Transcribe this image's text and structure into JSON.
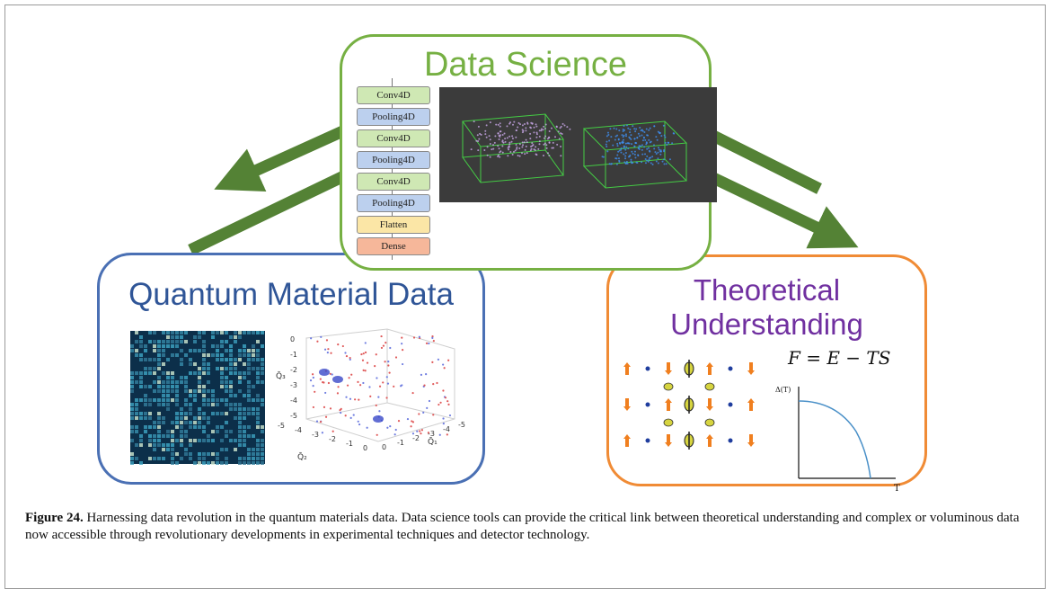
{
  "diagram": {
    "data_science": {
      "title": "Data Science",
      "layers": [
        "Conv4D",
        "Pooling4D",
        "Conv4D",
        "Pooling4D",
        "Conv4D",
        "Pooling4D",
        "Flatten",
        "Dense"
      ],
      "color": "#76b043"
    },
    "quantum_material": {
      "title": "Quantum Material Data",
      "color": "#4a70b4",
      "axis_z_ticks": [
        "0",
        "-1",
        "-2",
        "-3",
        "-4",
        "-5"
      ],
      "axis_x_ticks": [
        "-5",
        "-4",
        "-3",
        "-2",
        "-1",
        "0"
      ],
      "axis_y_ticks": [
        "0",
        "-1",
        "-2",
        "-3",
        "-4",
        "-5"
      ],
      "axis_z_label": "Q̄₃",
      "axis_x_label": "Q̄₂",
      "axis_y_label": "Q̄₁"
    },
    "theory": {
      "title": "Theoretical Understanding",
      "color": "#f08b35",
      "equation": "F = E − TS",
      "plot_ylabel": "Δ(T)",
      "plot_xlabel": "T"
    },
    "arrow_color": "#548235"
  },
  "caption": {
    "label": "Figure 24.",
    "text": " Harnessing data revolution in the quantum materials data. Data science tools can provide the critical link between theoretical understanding and complex or voluminous data now accessible through revolutionary developments in experimental techniques and detector technology."
  }
}
